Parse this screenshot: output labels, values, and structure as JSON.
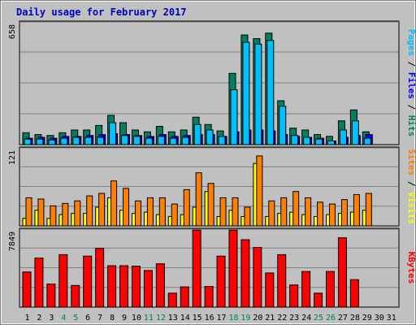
{
  "title": "Daily usage for February 2017",
  "chart_data": [
    {
      "type": "bar",
      "panel": "pages-files-hits",
      "max_label": "658",
      "ymax": 658,
      "axis_label_parts": [
        {
          "text": "Pages",
          "color": "#00c0ff"
        },
        {
          "text": " / ",
          "color": "#000000"
        },
        {
          "text": "Files",
          "color": "#0000ff"
        },
        {
          "text": " / ",
          "color": "#000000"
        },
        {
          "text": "Hits",
          "color": "#008060"
        }
      ],
      "series": [
        {
          "name": "Hits",
          "color": "#008060",
          "values": [
            65,
            55,
            50,
            65,
            80,
            80,
            105,
            160,
            120,
            80,
            70,
            100,
            70,
            80,
            150,
            110,
            75,
            390,
            600,
            580,
            610,
            240,
            90,
            80,
            55,
            45,
            130,
            190,
            70
          ]
        },
        {
          "name": "Files",
          "color": "#0000ff",
          "values": [
            35,
            40,
            35,
            45,
            45,
            50,
            55,
            60,
            55,
            50,
            45,
            55,
            45,
            50,
            55,
            55,
            45,
            70,
            80,
            80,
            75,
            55,
            45,
            40,
            35,
            20,
            40,
            50,
            55
          ]
        },
        {
          "name": "Pages",
          "color": "#00c0ff",
          "values": [
            30,
            30,
            25,
            35,
            40,
            40,
            40,
            120,
            50,
            45,
            35,
            45,
            35,
            40,
            110,
            80,
            45,
            300,
            560,
            550,
            570,
            210,
            50,
            40,
            30,
            20,
            80,
            130,
            35
          ]
        }
      ]
    },
    {
      "type": "bar",
      "panel": "sites-visits",
      "max_label": "121",
      "ymax": 121,
      "axis_label_parts": [
        {
          "text": "Sites",
          "color": "#ff8000"
        },
        {
          "text": " / ",
          "color": "#000000"
        },
        {
          "text": "Visits",
          "color": "#ffff00"
        }
      ],
      "series": [
        {
          "name": "Visits",
          "color": "#ffff00",
          "values": [
            12,
            25,
            12,
            18,
            20,
            20,
            30,
            45,
            25,
            20,
            22,
            18,
            15,
            18,
            30,
            55,
            15,
            25,
            15,
            100,
            15,
            20,
            22,
            18,
            15,
            18,
            20,
            22,
            25
          ]
        },
        {
          "name": "Sites",
          "color": "#ff8000",
          "values": [
            45,
            43,
            32,
            36,
            40,
            48,
            52,
            72,
            60,
            40,
            45,
            45,
            35,
            58,
            85,
            68,
            45,
            45,
            30,
            112,
            40,
            45,
            55,
            45,
            38,
            35,
            42,
            50,
            52
          ]
        }
      ]
    },
    {
      "type": "bar",
      "panel": "kbytes",
      "max_label": "7849",
      "ymax": 7849,
      "axis_label_parts": [
        {
          "text": "KBytes",
          "color": "#ff0000"
        }
      ],
      "series": [
        {
          "name": "KBytes",
          "color": "#ff0000",
          "values": [
            3650,
            5100,
            2400,
            5450,
            2250,
            5300,
            6100,
            4300,
            4300,
            4250,
            3800,
            4500,
            1450,
            2100,
            8000,
            2150,
            5300,
            8000,
            7000,
            6200,
            3550,
            5450,
            2300,
            3700,
            1450,
            3700,
            7200,
            2850,
            0
          ]
        }
      ]
    }
  ],
  "days": [
    {
      "label": "1",
      "color": "#000000"
    },
    {
      "label": "2",
      "color": "#000000"
    },
    {
      "label": "3",
      "color": "#000000"
    },
    {
      "label": "4",
      "color": "#008060"
    },
    {
      "label": "5",
      "color": "#008060"
    },
    {
      "label": "6",
      "color": "#000000"
    },
    {
      "label": "7",
      "color": "#000000"
    },
    {
      "label": "8",
      "color": "#000000"
    },
    {
      "label": "9",
      "color": "#000000"
    },
    {
      "label": "10",
      "color": "#000000"
    },
    {
      "label": "11",
      "color": "#008060"
    },
    {
      "label": "12",
      "color": "#008060"
    },
    {
      "label": "13",
      "color": "#000000"
    },
    {
      "label": "14",
      "color": "#000000"
    },
    {
      "label": "15",
      "color": "#000000"
    },
    {
      "label": "16",
      "color": "#000000"
    },
    {
      "label": "17",
      "color": "#000000"
    },
    {
      "label": "18",
      "color": "#008060"
    },
    {
      "label": "19",
      "color": "#008060"
    },
    {
      "label": "20",
      "color": "#000000"
    },
    {
      "label": "21",
      "color": "#000000"
    },
    {
      "label": "22",
      "color": "#000000"
    },
    {
      "label": "23",
      "color": "#000000"
    },
    {
      "label": "24",
      "color": "#000000"
    },
    {
      "label": "25",
      "color": "#008060"
    },
    {
      "label": "26",
      "color": "#008060"
    },
    {
      "label": "27",
      "color": "#000000"
    },
    {
      "label": "28",
      "color": "#000000"
    },
    {
      "label": "29",
      "color": "#000000"
    },
    {
      "label": "30",
      "color": "#000000"
    },
    {
      "label": "31",
      "color": "#000000"
    }
  ]
}
